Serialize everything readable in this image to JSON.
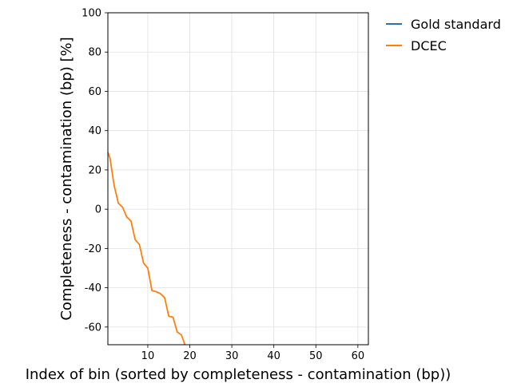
{
  "chart_data": {
    "type": "line",
    "title": "",
    "xlabel": "Index of bin (sorted by completeness - contamination (bp))",
    "ylabel": "Completeness - contamination (bp) [%]",
    "xlim": [
      0.5,
      62.5
    ],
    "ylim": [
      -69,
      100
    ],
    "xticks": [
      10,
      20,
      30,
      40,
      50,
      60
    ],
    "yticks": [
      -60,
      -40,
      -20,
      0,
      20,
      40,
      60,
      80,
      100
    ],
    "grid": true,
    "legend_position": "outside-right-top",
    "series": [
      {
        "name": "Gold standard",
        "color": "#1f77b4",
        "x": [],
        "y": []
      },
      {
        "name": "DCEC",
        "color": "#ff7f0e",
        "x": [
          0.5,
          1,
          2,
          3,
          4,
          5,
          6,
          7,
          8,
          9,
          10,
          11,
          12,
          13,
          14,
          15,
          16,
          17,
          18,
          19
        ],
        "y": [
          29,
          26,
          12,
          3,
          1,
          -4,
          -6,
          -15.5,
          -18,
          -27.5,
          -30,
          -41.5,
          -42,
          -43,
          -45,
          -54.5,
          -55,
          -62.5,
          -64,
          -70
        ]
      }
    ]
  }
}
